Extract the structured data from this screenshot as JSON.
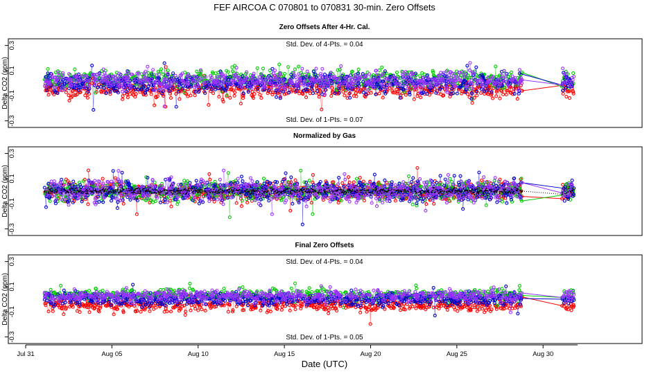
{
  "header": {
    "title": "FEF   AIRCOA C   070801 to 070831   30-min. Zero Offsets"
  },
  "chart_data": [
    {
      "type": "scatter",
      "title": "Zero Offsets After 4-Hr. Cal.",
      "ylabel": "Delta CO2 (ppm)",
      "ylim": [
        -0.32,
        0.32
      ],
      "yticks": [
        "0.3",
        "0.1",
        "-0.1",
        "-0.3"
      ],
      "annotations": [
        "Std. Dev. of 4-Pts. = 0.04",
        "Std. Dev. of 1-Pts. = 0.07"
      ],
      "series": [
        {
          "color": "#ff0000",
          "mean": -0.055,
          "sd": 0.035
        },
        {
          "color": "#00cc00",
          "mean": 0.035,
          "sd": 0.035
        },
        {
          "color": "#0000cc",
          "mean": -0.005,
          "sd": 0.04
        },
        {
          "color": "#9933ff",
          "mean": 0.02,
          "sd": 0.035
        }
      ]
    },
    {
      "type": "scatter",
      "title": "Normalized by Gas",
      "ylabel": "Delta CO2 (ppm)",
      "ylim": [
        -0.32,
        0.32
      ],
      "yticks": [
        "0.3",
        "0.1",
        "-0.1",
        "-0.3"
      ],
      "annotations": [],
      "series": [
        {
          "color": "#ff0000",
          "mean": 0.0,
          "sd": 0.04
        },
        {
          "color": "#00cc00",
          "mean": 0.0,
          "sd": 0.04
        },
        {
          "color": "#0000cc",
          "mean": 0.0,
          "sd": 0.045
        },
        {
          "color": "#9933ff",
          "mean": 0.0,
          "sd": 0.04
        },
        {
          "color": "#000000",
          "mean": 0.0,
          "sd": 0.012
        }
      ]
    },
    {
      "type": "scatter",
      "title": "Final Zero Offsets",
      "ylabel": "Delta CO2 (ppm)",
      "ylim": [
        -0.32,
        0.32
      ],
      "yticks": [
        "0.3",
        "0.1",
        "-0.1",
        "-0.3"
      ],
      "annotations": [
        "Std. Dev. of 4-Pts. = 0.04",
        "Std. Dev. of 1-Pts. = 0.05"
      ],
      "series": [
        {
          "color": "#ff0000",
          "mean": -0.05,
          "sd": 0.025
        },
        {
          "color": "#00cc00",
          "mean": 0.035,
          "sd": 0.022
        },
        {
          "color": "#0000cc",
          "mean": 0.0,
          "sd": 0.025
        },
        {
          "color": "#9933ff",
          "mean": 0.025,
          "sd": 0.022
        }
      ]
    }
  ],
  "x_axis": {
    "label": "Date (UTC)",
    "day_range": [
      31,
      63
    ],
    "data_start_day": 32.1,
    "data_end_day": 59.8,
    "gap_end_day": 62.1,
    "data_final_day": 62.8,
    "ticks": [
      {
        "day": 31,
        "label": "Jul 31"
      },
      {
        "day": 36,
        "label": "Aug 05"
      },
      {
        "day": 41,
        "label": "Aug 10"
      },
      {
        "day": 46,
        "label": "Aug 15"
      },
      {
        "day": 51,
        "label": "Aug 20"
      },
      {
        "day": 56,
        "label": "Aug 25"
      },
      {
        "day": 61,
        "label": "Aug 30"
      }
    ]
  }
}
